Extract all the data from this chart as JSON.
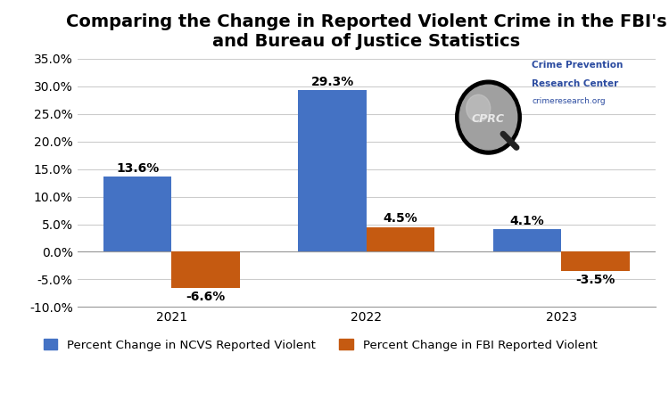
{
  "title": "Comparing the Change in Reported Violent Crime in the FBI's\nand Bureau of Justice Statistics",
  "years": [
    "2021",
    "2022",
    "2023"
  ],
  "ncvs_values": [
    13.6,
    29.3,
    4.1
  ],
  "fbi_values": [
    -6.6,
    4.5,
    -3.5
  ],
  "ncvs_color": "#4472C4",
  "fbi_color": "#C55A11",
  "ylim": [
    -10,
    35
  ],
  "yticks": [
    -10.0,
    -5.0,
    0.0,
    5.0,
    10.0,
    15.0,
    20.0,
    25.0,
    30.0,
    35.0
  ],
  "ytick_labels": [
    "-10.0%",
    "-5.0%",
    "0.0%",
    "5.0%",
    "10.0%",
    "15.0%",
    "20.0%",
    "25.0%",
    "30.0%",
    "35.0%"
  ],
  "legend_ncvs": "Percent Change in NCVS Reported Violent",
  "legend_fbi": "Percent Change in FBI Reported Violent",
  "bar_width": 0.35,
  "background_color": "#FFFFFF",
  "grid_color": "#CCCCCC",
  "title_fontsize": 14,
  "label_fontsize": 9.5,
  "tick_fontsize": 10,
  "annotation_fontsize": 10,
  "logo_text": "CPRC",
  "logo_subtext_line1": "Crime Prevention",
  "logo_subtext_line2": "Research Center",
  "logo_subtext_line3": "crimeresearch.org",
  "logo_text_color": "#2B4BA0",
  "logo_subtext_color": "#2B4BA0",
  "logo_url_color": "#2B4BA0"
}
